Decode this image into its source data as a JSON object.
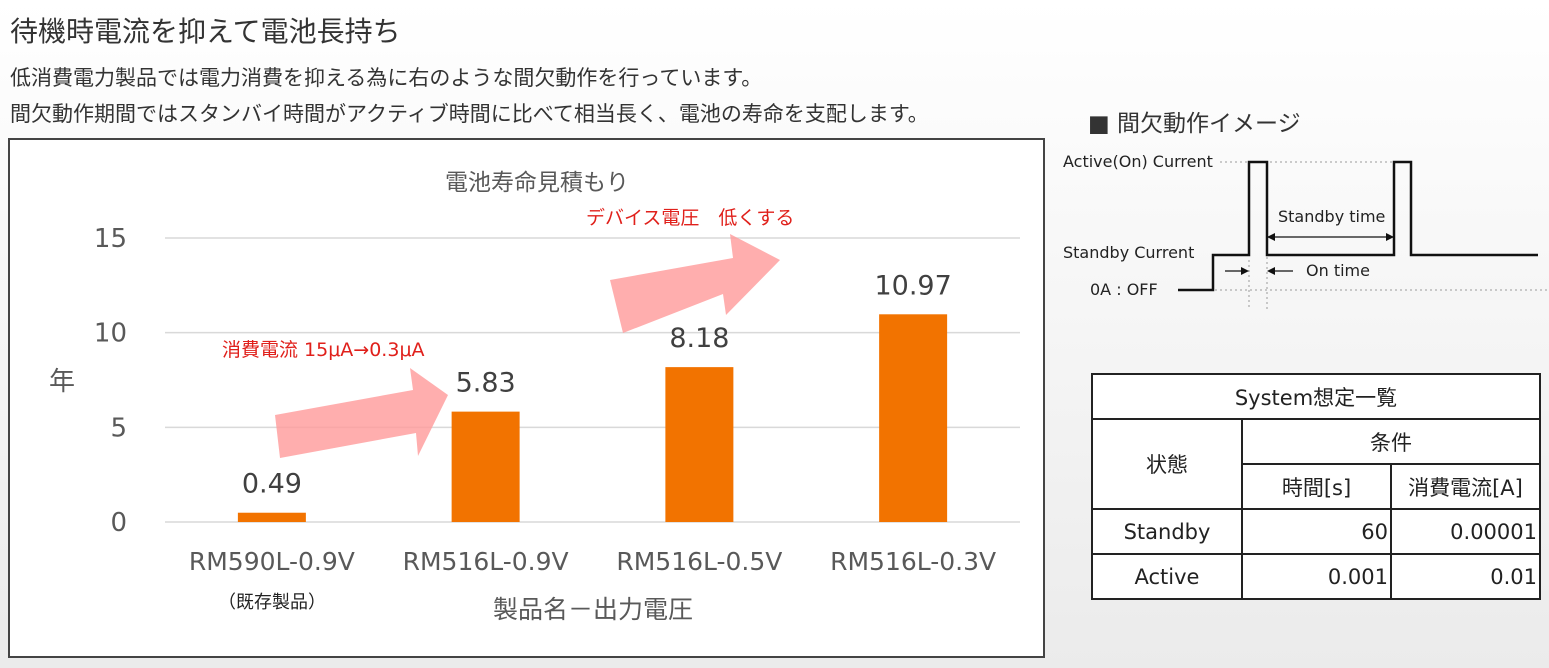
{
  "header": {
    "title": "待機時電流を抑えて電池長持ち",
    "line1": "低消費電力製品では電力消費を抑える為に右のような間欠動作を行っています。",
    "line2": "間欠動作期間ではスタンバイ時間がアクティブ時間に比べて相当長く、電池の寿命を支配します。"
  },
  "chart_data": {
    "type": "bar",
    "title": "電池寿命見積もり",
    "categories": [
      "RM590L-0.9V",
      "RM516L-0.9V",
      "RM516L-0.5V",
      "RM516L-0.3V"
    ],
    "values": [
      0.49,
      5.83,
      8.18,
      10.97
    ],
    "data_labels": [
      "0.49",
      "5.83",
      "8.18",
      "10.97"
    ],
    "sub_category_note": "（既存製品）",
    "xlabel": "製品名－出力電圧",
    "ylabel": "年",
    "ylim": [
      0,
      15
    ],
    "yticks": [
      0,
      5,
      10,
      15
    ],
    "grid": true,
    "bar_color": "#f27300",
    "annotations": {
      "current": "消費電流 15μA→0.3μA",
      "voltage": "デバイス電圧　低くする"
    }
  },
  "diagram": {
    "title": "■ 間欠動作イメージ",
    "active_label": "Active(On) Current",
    "standby_label": "Standby Current",
    "off_label": "0A : OFF",
    "standby_time": "Standby time",
    "on_time": "On time"
  },
  "table": {
    "title": "System想定一覧",
    "col_state": "状態",
    "col_cond": "条件",
    "col_time": "時間[s]",
    "col_current": "消費電流[A]",
    "rows": [
      {
        "state": "Standby",
        "time": "60",
        "current": "0.00001"
      },
      {
        "state": "Active",
        "time": "0.001",
        "current": "0.01"
      }
    ]
  }
}
